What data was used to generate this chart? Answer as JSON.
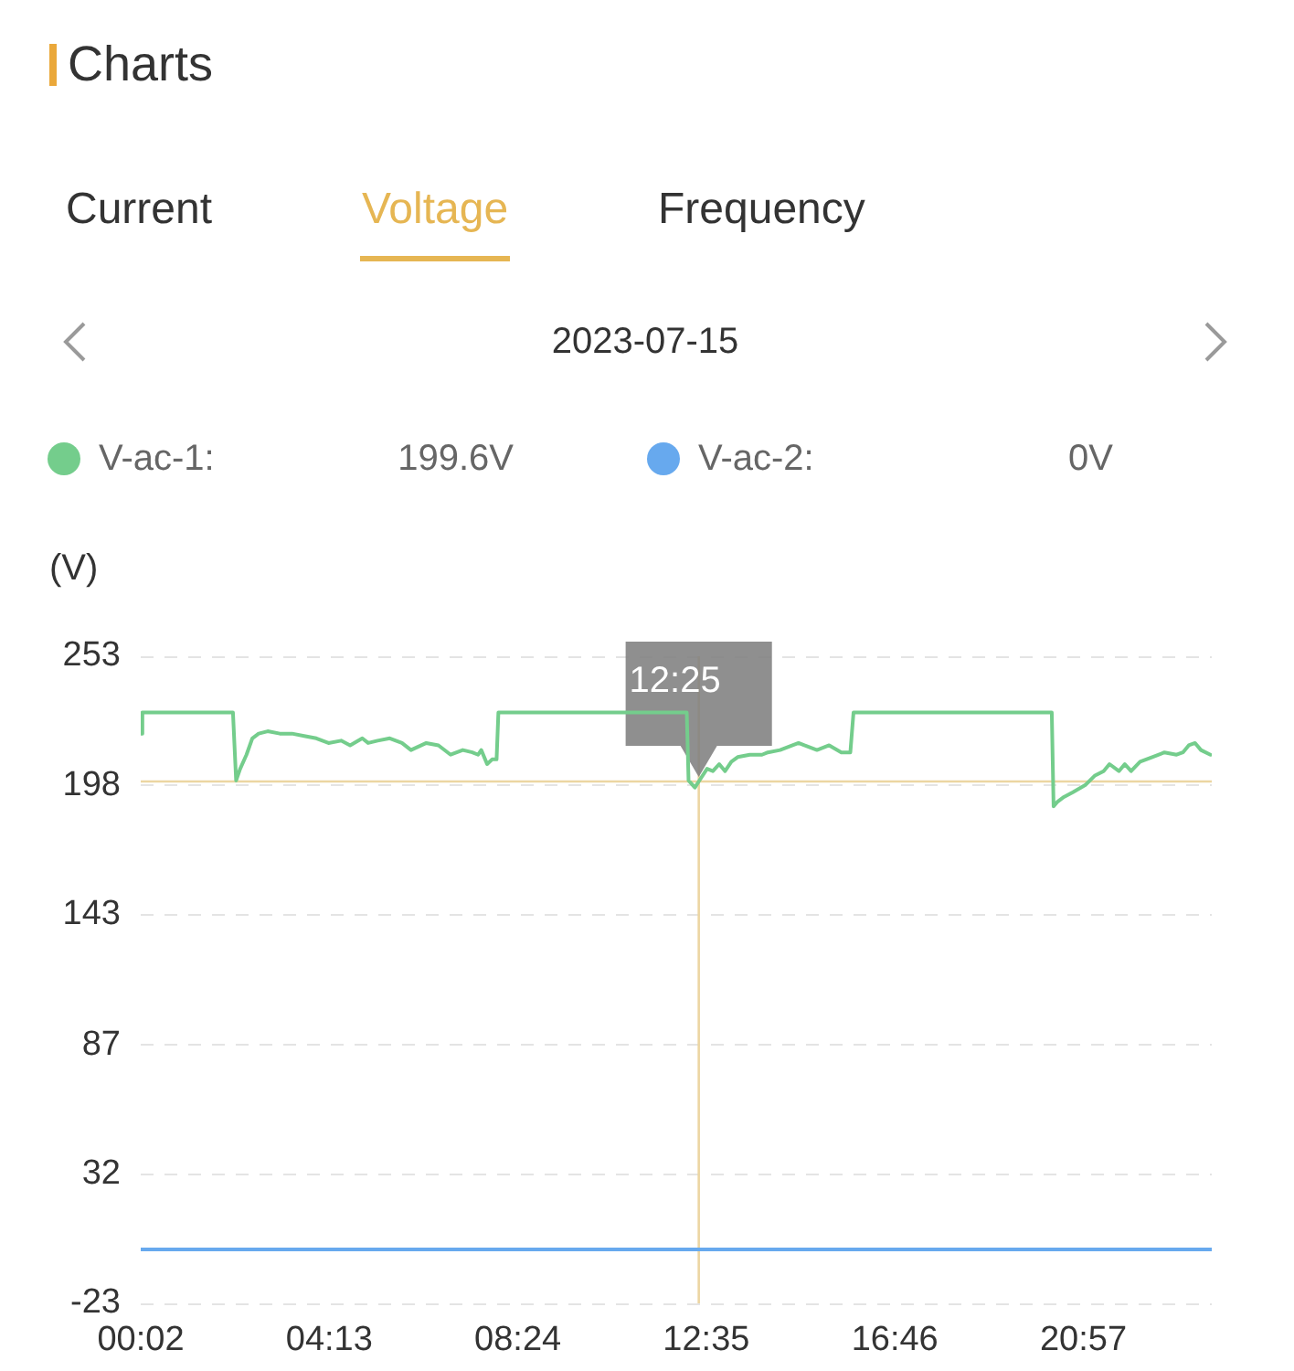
{
  "chart_data": {
    "type": "line",
    "title": "Charts",
    "subtitle": "2023-07-15",
    "ylabel": "(V)",
    "annotations": [
      "Current",
      "Voltage",
      "Frequency",
      "199.6V",
      "0V"
    ],
    "series": [
      {
        "name": "V-ac-1:",
        "color": "#74cd8c",
        "x": [
          0.0333,
          0.07,
          2.08,
          2.15,
          2.24,
          2.38,
          2.51,
          2.65,
          2.85,
          3.12,
          3.39,
          3.66,
          3.93,
          4.2,
          4.48,
          4.68,
          4.95,
          5.08,
          5.29,
          5.56,
          5.83,
          6.03,
          6.37,
          6.64,
          6.91,
          7.18,
          7.39,
          7.52,
          7.59,
          7.72,
          7.83,
          7.93,
          7.97,
          12.15,
          12.19,
          12.33,
          12.4167,
          12.6,
          12.73,
          12.87,
          13.0,
          13.14,
          13.28,
          13.55,
          13.82,
          13.95,
          14.22,
          14.63,
          14.76,
          15.04,
          15.31,
          15.58,
          15.78,
          15.85,
          20.25,
          20.29,
          20.38,
          20.52,
          20.72,
          20.99,
          21.2,
          21.4,
          21.53,
          21.74,
          21.87,
          22.01,
          22.21,
          22.48,
          22.75,
          23.02,
          23.16,
          23.29,
          23.43,
          23.56,
          23.77
        ],
        "values": [
          220,
          229,
          229,
          200,
          205,
          211,
          218,
          220,
          221,
          220,
          220,
          219,
          218,
          216,
          217,
          215,
          218,
          216,
          217,
          218,
          216,
          213,
          216,
          215,
          211,
          213,
          212,
          211,
          213,
          207,
          209,
          209,
          229,
          229,
          200,
          197,
          199.6,
          205,
          204,
          207,
          204,
          208,
          210,
          211,
          211,
          212,
          213,
          216,
          215,
          213,
          215,
          212,
          212,
          229,
          229,
          189,
          191,
          193,
          195,
          198,
          202,
          204,
          207,
          204,
          207,
          204,
          208,
          210,
          212,
          211,
          212,
          215,
          216,
          213,
          211
        ]
      },
      {
        "name": "V-ac-2:",
        "color": "#67a9ee",
        "x": [
          0.0333,
          23.8
        ],
        "values": [
          0,
          0
        ]
      }
    ],
    "xlim": [
      0.0333,
      23.8
    ],
    "xticks": [
      {
        "value": 0.0333,
        "label": "00:02"
      },
      {
        "value": 4.2167,
        "label": "04:13"
      },
      {
        "value": 8.4,
        "label": "08:24"
      },
      {
        "value": 12.5833,
        "label": "12:35"
      },
      {
        "value": 16.7667,
        "label": "16:46"
      },
      {
        "value": 20.95,
        "label": "20:57"
      }
    ],
    "ylim": [
      -23,
      253
    ],
    "yticks": [
      -23,
      32,
      87,
      143,
      198,
      253
    ],
    "ref_lines": [
      {
        "axis": "x",
        "value": 12.4167,
        "label": "12:25",
        "color": "#ecd6a2"
      },
      {
        "axis": "y",
        "value": 199.6,
        "color": "#ecd6a2"
      }
    ],
    "grid": "y",
    "legend": "top",
    "marker": "none"
  }
}
